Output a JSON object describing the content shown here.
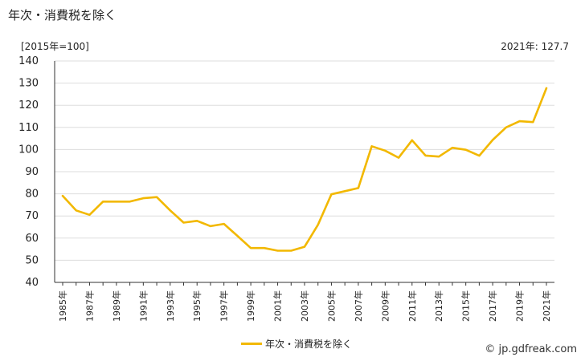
{
  "title": "年次・消費税を除く",
  "unit_label": "[2015年=100]",
  "latest_note": "2021年: 127.7",
  "credit": "© jp.gdfreak.com",
  "colors": {
    "series": "#f2b800",
    "grid": "#dddddd",
    "axis": "#333333"
  },
  "chart_data": {
    "type": "line",
    "title": "年次・消費税を除く",
    "ylabel": "[2015年=100]",
    "xlabel": "",
    "ylim": [
      40,
      140
    ],
    "yticks": [
      40,
      50,
      60,
      70,
      80,
      90,
      100,
      110,
      120,
      130,
      140
    ],
    "grid": "horizontal",
    "legend_position": "bottom-center",
    "x": [
      1985,
      1986,
      1987,
      1988,
      1989,
      1990,
      1991,
      1992,
      1993,
      1994,
      1995,
      1996,
      1997,
      1998,
      1999,
      2000,
      2001,
      2002,
      2003,
      2004,
      2005,
      2006,
      2007,
      2008,
      2009,
      2010,
      2011,
      2012,
      2013,
      2014,
      2015,
      2016,
      2017,
      2018,
      2019,
      2020,
      2021
    ],
    "xtick_labels": [
      "1985年",
      "1987年",
      "1989年",
      "1991年",
      "1993年",
      "1995年",
      "1997年",
      "1999年",
      "2001年",
      "2003年",
      "2005年",
      "2007年",
      "2009年",
      "2011年",
      "2013年",
      "2015年",
      "2017年",
      "2019年",
      "2021年"
    ],
    "series": [
      {
        "name": "年次・消費税を除く",
        "values": [
          79.1,
          72.5,
          70.5,
          76.5,
          76.5,
          76.5,
          78.0,
          78.5,
          72.5,
          67.0,
          67.8,
          65.4,
          66.4,
          61.0,
          55.5,
          55.5,
          54.3,
          54.3,
          56.1,
          66.0,
          79.8,
          81.2,
          82.6,
          101.5,
          99.5,
          96.3,
          104.2,
          97.3,
          96.8,
          100.8,
          99.9,
          97.2,
          104.3,
          110.0,
          112.8,
          112.4,
          127.7
        ]
      }
    ]
  }
}
